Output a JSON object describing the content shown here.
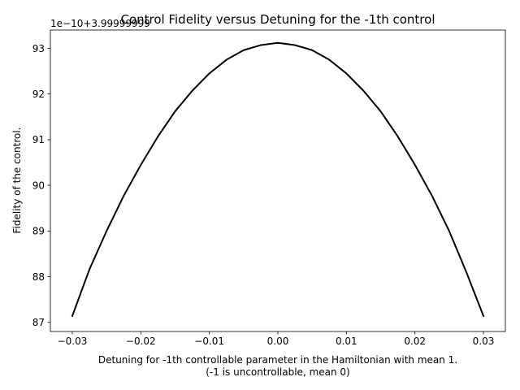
{
  "chart_data": {
    "type": "line",
    "title": "Control Fidelity versus Detuning for the -1th control",
    "xlabel_line1": "Detuning for -1th controllable parameter in the Hamiltonian with mean 1.",
    "xlabel_line2": "(-1 is uncontrollable, mean 0)",
    "ylabel": "Fidelity of the control.",
    "y_offset_text": "1e−10+3.99999999",
    "xlim": [
      -0.0332,
      0.0332
    ],
    "ylim": [
      86.8,
      93.4
    ],
    "x_ticks": [
      -0.03,
      -0.02,
      -0.01,
      0.0,
      0.01,
      0.02,
      0.03
    ],
    "x_tick_labels": [
      "−0.03",
      "−0.02",
      "−0.01",
      "0.00",
      "0.01",
      "0.02",
      "0.03"
    ],
    "y_ticks": [
      87,
      88,
      89,
      90,
      91,
      92,
      93
    ],
    "y_tick_labels": [
      "87",
      "88",
      "89",
      "90",
      "91",
      "92",
      "93"
    ],
    "grid": false,
    "legend": "none",
    "line_color": "#000000",
    "series": [
      {
        "x": [
          -0.03,
          -0.0275,
          -0.025,
          -0.0225,
          -0.02,
          -0.0175,
          -0.015,
          -0.0125,
          -0.01,
          -0.0075,
          -0.005,
          -0.0025,
          0.0,
          0.0025,
          0.005,
          0.0075,
          0.01,
          0.0125,
          0.015,
          0.0175,
          0.02,
          0.0225,
          0.025,
          0.0275,
          0.03
        ],
        "y": [
          87.14,
          88.16,
          89.0,
          89.77,
          90.45,
          91.07,
          91.62,
          92.07,
          92.45,
          92.75,
          92.96,
          93.07,
          93.12,
          93.07,
          92.96,
          92.75,
          92.45,
          92.07,
          91.62,
          91.07,
          90.45,
          89.77,
          89.0,
          88.1,
          87.14
        ]
      }
    ]
  }
}
